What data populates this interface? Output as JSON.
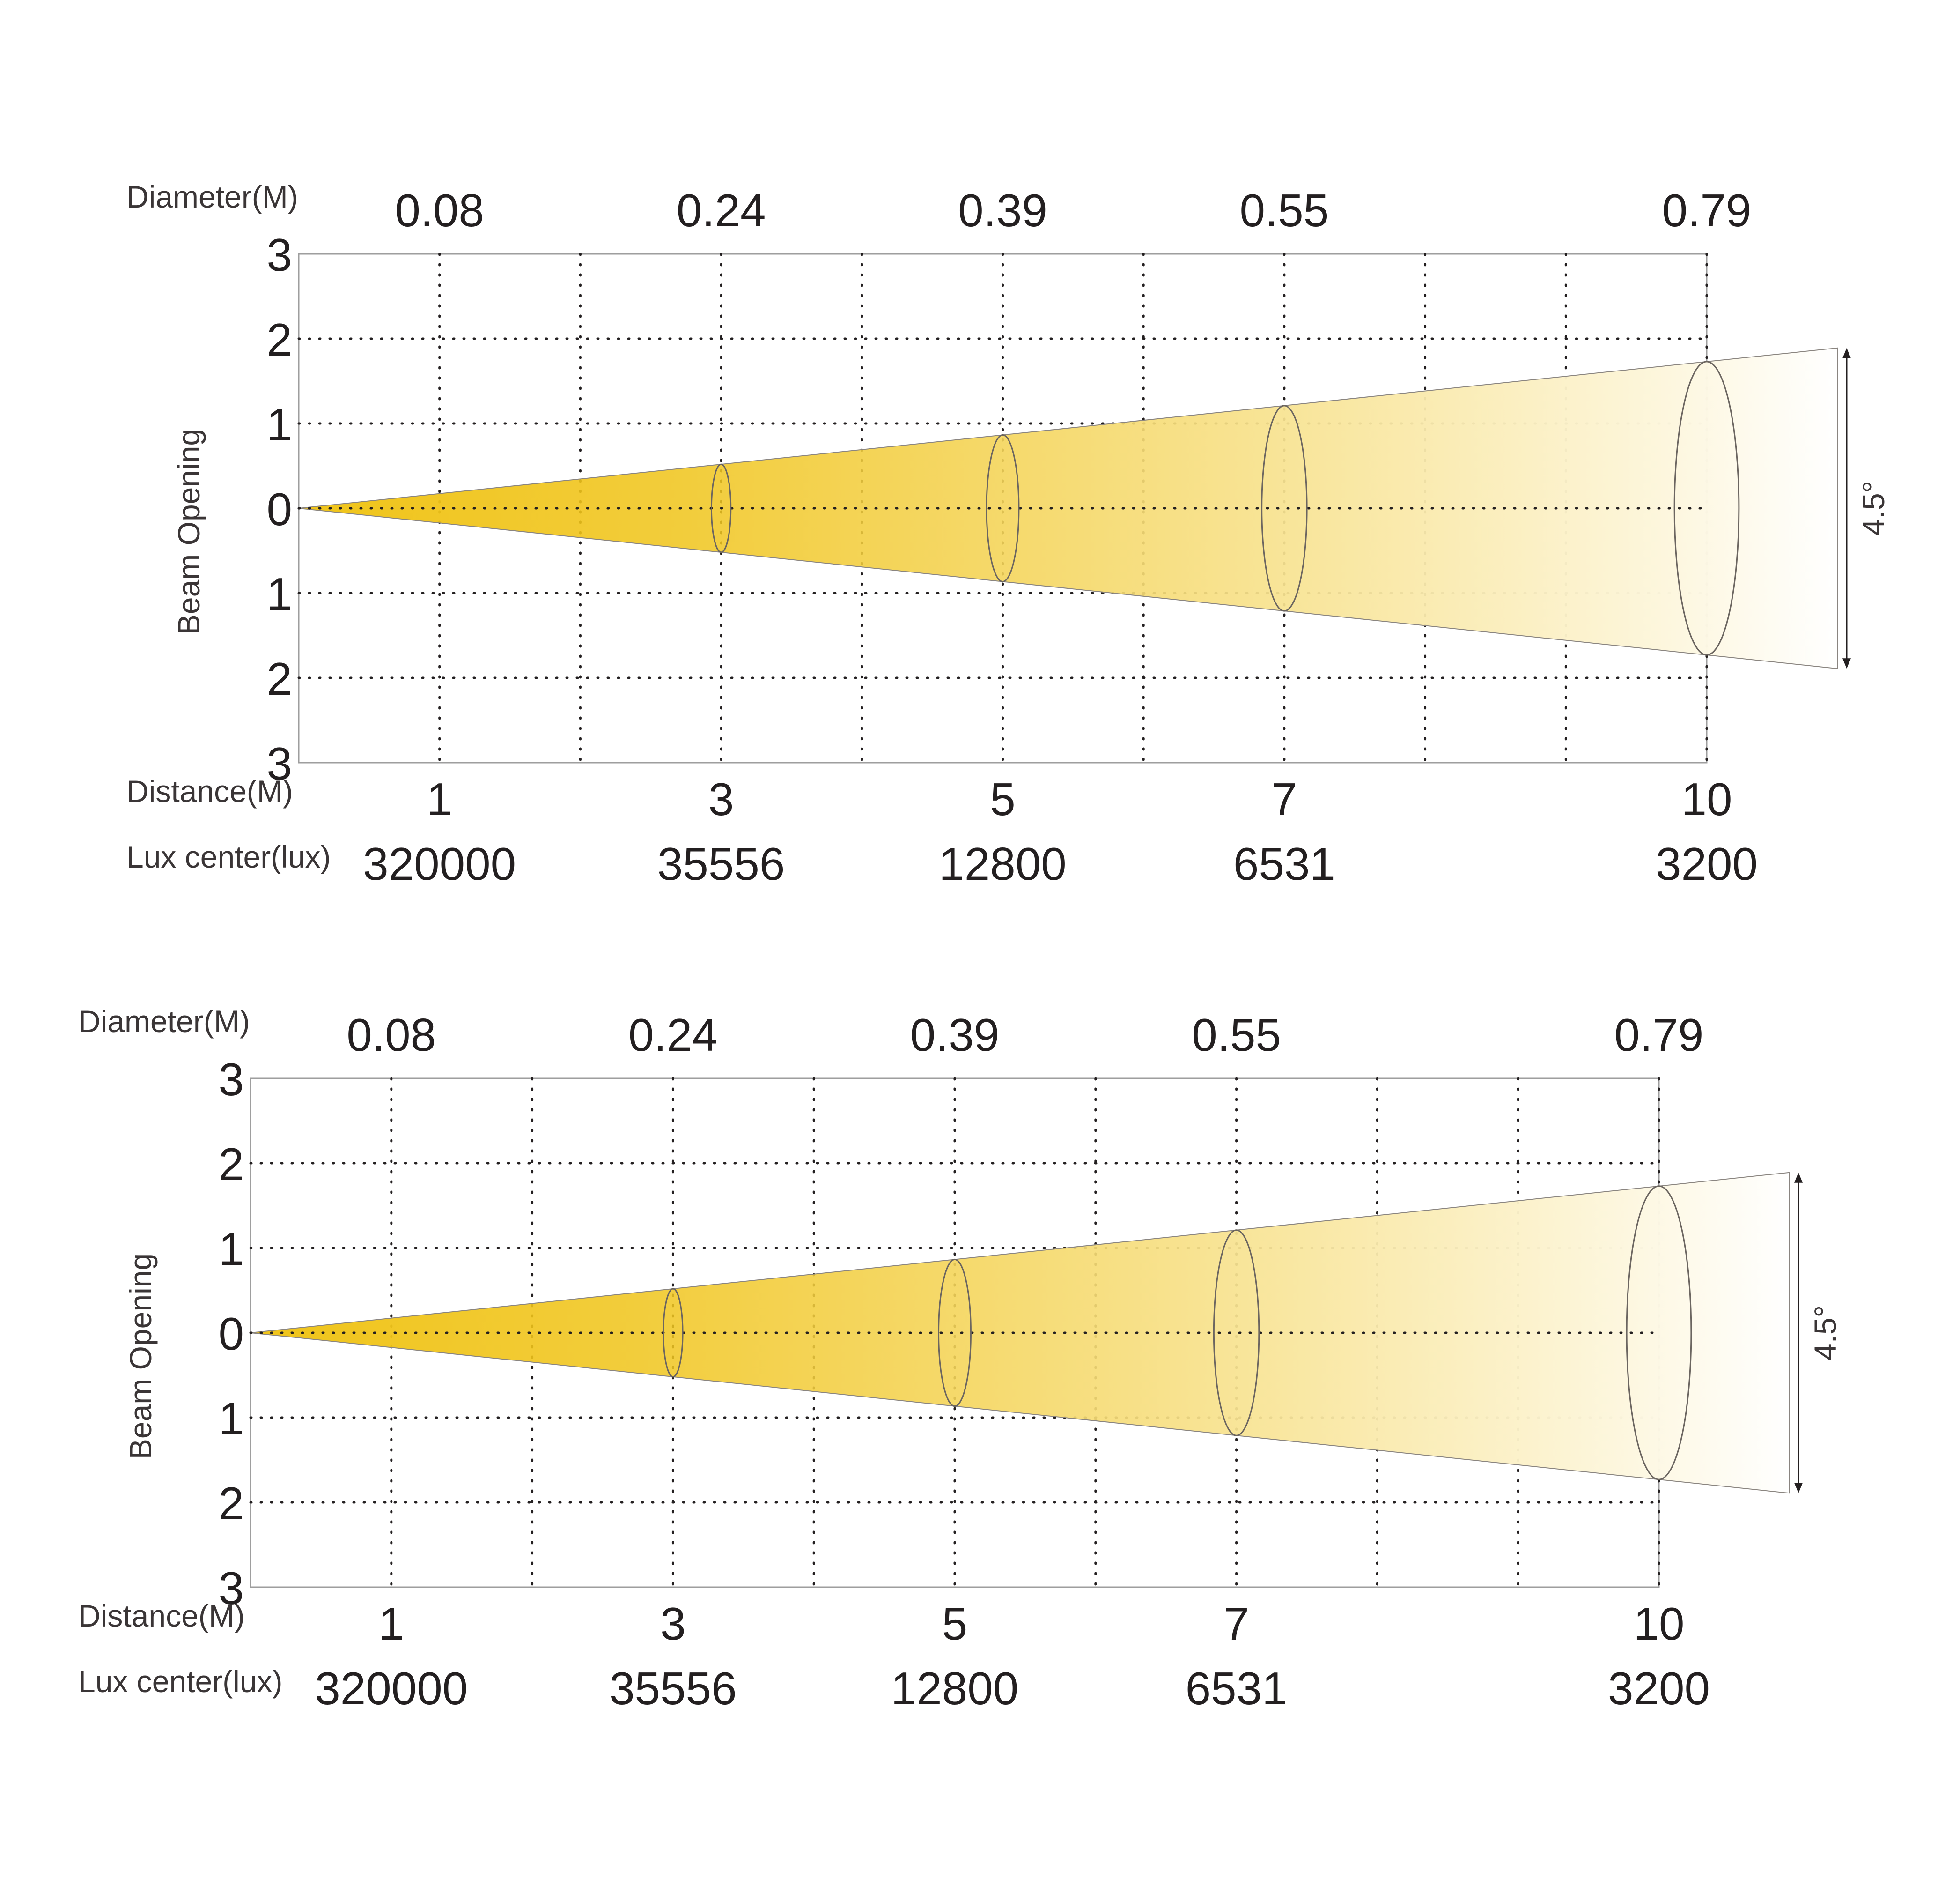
{
  "colors": {
    "beam_start": "#f0c419",
    "beam_end": "#ffffff",
    "grid": "#231f20",
    "frame": "#9e9e9e",
    "text": "#231f20"
  },
  "chart_data": [
    {
      "type": "beam-angle",
      "beam_angle_label": "4.5°",
      "ylabel": "Beam Opening",
      "diameter_label": "Diameter(M)",
      "distance_label": "Distance(M)",
      "lux_label": "Lux center(lux)",
      "y_ticks": [
        "3",
        "2",
        "1",
        "0",
        "1",
        "2",
        "3"
      ],
      "ylim": [
        -3,
        3
      ],
      "xlim": [
        0,
        10
      ],
      "distances": [
        1,
        3,
        5,
        7,
        10
      ],
      "distance_labels": [
        "1",
        "3",
        "5",
        "7",
        "10"
      ],
      "diameters": [
        "0.08",
        "0.24",
        "0.39",
        "0.55",
        "0.79"
      ],
      "lux_center": [
        "320000",
        "35556",
        "12800",
        "6531",
        "3200"
      ],
      "grid": true
    },
    {
      "type": "beam-angle",
      "beam_angle_label": "4.5°",
      "ylabel": "Beam Opening",
      "diameter_label": "Diameter(M)",
      "distance_label": "Distance(M)",
      "lux_label": "Lux center(lux)",
      "y_ticks": [
        "3",
        "2",
        "1",
        "0",
        "1",
        "2",
        "3"
      ],
      "ylim": [
        -3,
        3
      ],
      "xlim": [
        0,
        10
      ],
      "distances": [
        1,
        3,
        5,
        7,
        10
      ],
      "distance_labels": [
        "1",
        "3",
        "5",
        "7",
        "10"
      ],
      "diameters": [
        "0.08",
        "0.24",
        "0.39",
        "0.55",
        "0.79"
      ],
      "lux_center": [
        "320000",
        "35556",
        "12800",
        "6531",
        "3200"
      ],
      "grid": true
    }
  ]
}
